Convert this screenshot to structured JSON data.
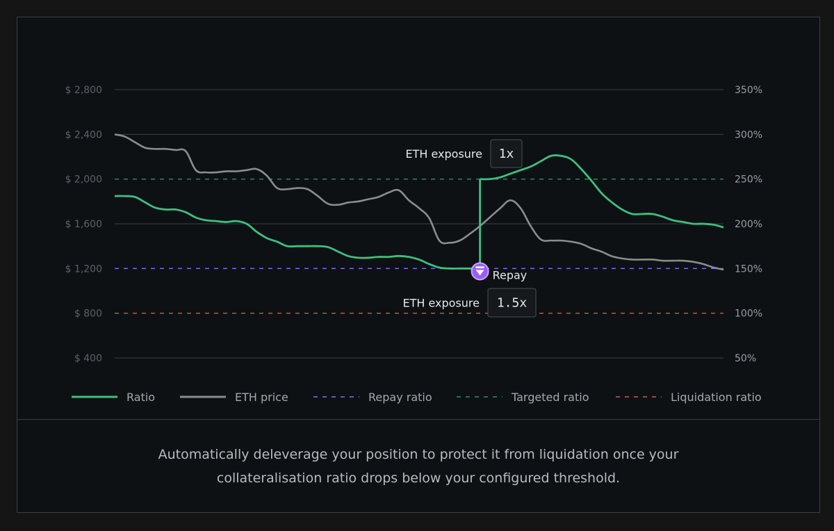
{
  "chart_data": {
    "type": "line",
    "title": "",
    "y_left": {
      "prefix": "$",
      "ticks": [
        2800,
        2400,
        2000,
        1600,
        1200,
        800,
        400
      ],
      "tick_labels": [
        "$ 2,800",
        "$ 2,400",
        "$ 2,000",
        "$ 1,600",
        "$ 1,200",
        "$ 800",
        "$ 400"
      ],
      "ylim": [
        400,
        2800
      ]
    },
    "y_right": {
      "ticks": [
        350,
        300,
        250,
        200,
        150,
        100,
        50
      ],
      "tick_labels": [
        "350%",
        "300%",
        "250%",
        "200%",
        "150%",
        "100%",
        "50%"
      ],
      "ylim": [
        50,
        350
      ]
    },
    "x_count": 61,
    "series": [
      {
        "name": "Ratio",
        "axis": "right",
        "color": "#3fbf7f",
        "style": "solid",
        "values": [
          231,
          231,
          230,
          224,
          218,
          216,
          216,
          213,
          207,
          204,
          203,
          202,
          203,
          200,
          191,
          184,
          180,
          175,
          175,
          175,
          175,
          174,
          169,
          164,
          162,
          162,
          163,
          163,
          164,
          163,
          160,
          155,
          151,
          150,
          150,
          150,
          250,
          250,
          252,
          256,
          260,
          264,
          270,
          276,
          276,
          272,
          261,
          248,
          234,
          224,
          216,
          211,
          211,
          211,
          208,
          204,
          202,
          200,
          200,
          199,
          196
        ]
      },
      {
        "name": "ETH price",
        "axis": "left",
        "color": "#8a8d90",
        "style": "solid",
        "values": [
          2400,
          2380,
          2330,
          2280,
          2270,
          2270,
          2260,
          2250,
          2080,
          2060,
          2060,
          2070,
          2070,
          2080,
          2090,
          2030,
          1920,
          1910,
          1920,
          1910,
          1850,
          1780,
          1770,
          1790,
          1800,
          1820,
          1840,
          1880,
          1900,
          1810,
          1740,
          1650,
          1450,
          1430,
          1450,
          1510,
          1580,
          1660,
          1740,
          1810,
          1740,
          1580,
          1460,
          1450,
          1450,
          1440,
          1420,
          1380,
          1350,
          1310,
          1290,
          1280,
          1280,
          1280,
          1270,
          1270,
          1270,
          1260,
          1240,
          1210,
          1190
        ]
      },
      {
        "name": "Repay ratio",
        "axis": "right",
        "color": "#8a6cf0",
        "style": "dashed",
        "constant": 150
      },
      {
        "name": "Targeted ratio",
        "axis": "right",
        "color": "#2f8f6a",
        "style": "dashed",
        "constant": 250
      },
      {
        "name": "Liquidation ratio",
        "axis": "right",
        "color": "#d9534f",
        "style": "dashed",
        "constant": 100
      }
    ],
    "annotations": {
      "event_index": 36,
      "repay_label": "Repay",
      "before": {
        "label": "ETH exposure",
        "value": "1.5x"
      },
      "after": {
        "label": "ETH exposure",
        "value": "1x"
      }
    },
    "legend_placement": "bottom",
    "grid": true
  },
  "caption": "Automatically deleverage your position to protect it from liquidation once your collateralisation ratio drops below your configured threshold."
}
